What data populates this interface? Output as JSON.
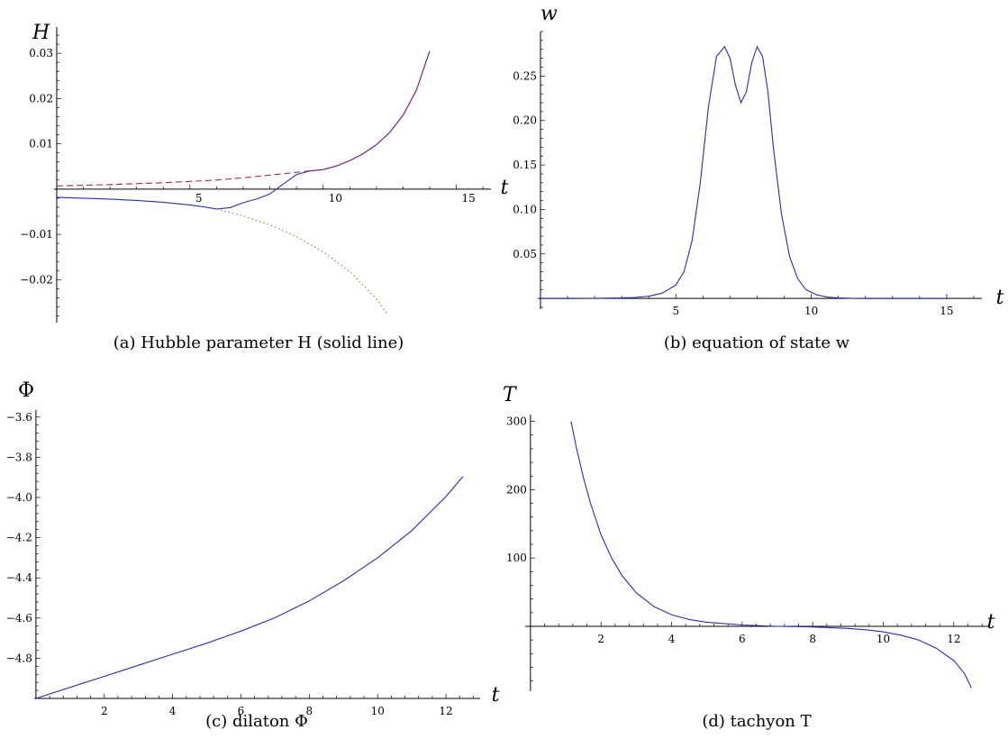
{
  "chart_data": [
    {
      "type": "line",
      "panel": "a",
      "caption": "(a)  Hubble parameter H (solid line)",
      "xlabel": "t",
      "ylabel": "H",
      "xlim": [
        -0.1,
        16.3
      ],
      "ylim": [
        -0.0295,
        0.0358
      ],
      "xticks": [
        5,
        10,
        15
      ],
      "yticks": [
        -0.02,
        -0.01,
        0.01,
        0.02,
        0.03
      ],
      "yticklabels": [
        "−0.02",
        "−0.01",
        "0.01",
        "0.02",
        "0.03"
      ],
      "series": [
        {
          "style": "solid",
          "color": "#2e2ea4",
          "x": [
            0,
            1,
            2,
            3,
            4,
            5,
            5.5,
            6,
            6.5,
            7,
            7.5,
            8,
            8.5,
            9,
            9.5,
            10,
            10.5,
            11,
            11.5,
            12,
            12.5,
            13,
            13.5,
            14
          ],
          "y": [
            -0.0018,
            -0.002,
            -0.0022,
            -0.0025,
            -0.0029,
            -0.0035,
            -0.0039,
            -0.0044,
            -0.0041,
            -0.003,
            -0.0022,
            -0.0011,
            0.0011,
            0.0032,
            0.004,
            0.0043,
            0.0051,
            0.0063,
            0.0078,
            0.0098,
            0.0125,
            0.0163,
            0.0218,
            0.0305
          ]
        },
        {
          "style": "dashed",
          "color": "#9b2a55",
          "x": [
            0,
            2,
            4,
            6,
            7,
            8,
            9,
            9.5,
            10,
            10.5,
            11,
            11.5,
            12,
            12.5,
            13,
            13.5,
            14
          ],
          "y": [
            0.0007,
            0.001,
            0.0014,
            0.002,
            0.0025,
            0.0031,
            0.0037,
            0.004,
            0.0043,
            0.0051,
            0.0063,
            0.0078,
            0.0098,
            0.0125,
            0.0163,
            0.0218,
            0.0305
          ]
        },
        {
          "style": "dotted",
          "color": "#9a7a2a",
          "x": [
            6,
            7,
            8,
            9,
            10,
            11,
            12,
            12.4
          ],
          "y": [
            -0.0044,
            -0.0059,
            -0.0079,
            -0.0105,
            -0.0139,
            -0.0182,
            -0.0242,
            -0.0275
          ]
        }
      ]
    },
    {
      "type": "line",
      "panel": "b",
      "caption": "(b)  equation of state w",
      "xlabel": "t",
      "ylabel": "w",
      "xlim": [
        -0.1,
        16.3
      ],
      "ylim": [
        -0.012,
        0.3
      ],
      "xticks": [
        5,
        10,
        15
      ],
      "yticks": [
        0.05,
        0.1,
        0.15,
        0.2,
        0.25
      ],
      "yticklabels": [
        "0.05",
        "0.10",
        "0.15",
        "0.20",
        "0.25"
      ],
      "series": [
        {
          "style": "solid",
          "color": "#2e2ea4",
          "x": [
            0,
            1,
            2,
            3,
            3.5,
            4,
            4.5,
            5,
            5.3,
            5.6,
            5.9,
            6.2,
            6.5,
            6.8,
            7.0,
            7.2,
            7.4,
            7.6,
            7.8,
            8.0,
            8.2,
            8.4,
            8.6,
            8.9,
            9.2,
            9.5,
            9.8,
            10.2,
            10.6,
            11,
            11.5,
            12,
            13,
            15
          ],
          "y": [
            0,
            0,
            0.0002,
            0.0006,
            0.0012,
            0.0025,
            0.006,
            0.015,
            0.03,
            0.065,
            0.13,
            0.215,
            0.272,
            0.283,
            0.27,
            0.24,
            0.22,
            0.232,
            0.265,
            0.283,
            0.272,
            0.232,
            0.17,
            0.095,
            0.047,
            0.022,
            0.01,
            0.004,
            0.0015,
            0.0006,
            0.0002,
            0,
            0,
            0
          ]
        }
      ]
    },
    {
      "type": "line",
      "panel": "c",
      "caption": "(c)  dilaton Φ",
      "xlabel": "t",
      "ylabel": "Φ",
      "xlim": [
        -0.05,
        13.0
      ],
      "ylim": [
        -5.0,
        -3.565
      ],
      "xticks": [
        2,
        4,
        6,
        8,
        10,
        12
      ],
      "yticks": [
        -4.8,
        -4.6,
        -4.4,
        -4.2,
        -4.0,
        -3.8,
        -3.6
      ],
      "yticklabels": [
        "−4.8",
        "−4.6",
        "−4.4",
        "−4.2",
        "−4.0",
        "−3.8",
        "−3.6"
      ],
      "series": [
        {
          "style": "solid",
          "color": "#2e2ea4",
          "x": [
            0,
            1,
            2,
            3,
            4,
            5,
            6,
            7,
            8,
            9,
            10,
            11,
            12,
            12.5
          ],
          "y": [
            -5.0,
            -4.945,
            -4.89,
            -4.835,
            -4.78,
            -4.725,
            -4.665,
            -4.598,
            -4.515,
            -4.415,
            -4.3,
            -4.165,
            -3.995,
            -3.895
          ]
        }
      ]
    },
    {
      "type": "line",
      "panel": "d",
      "caption": "(d)  tachyon T",
      "xlabel": "t",
      "ylabel": "T",
      "xlim": [
        -0.15,
        13.0
      ],
      "ylim": [
        -95,
        310
      ],
      "xticks": [
        2,
        4,
        6,
        8,
        10,
        12
      ],
      "yticks": [
        100,
        200,
        300
      ],
      "yticklabels": [
        "100",
        "200",
        "300"
      ],
      "series": [
        {
          "style": "solid",
          "color": "#2e2ea4",
          "x": [
            1.15,
            1.3,
            1.5,
            1.7,
            2,
            2.3,
            2.6,
            3,
            3.5,
            4,
            4.5,
            5,
            6,
            7,
            8,
            9,
            9.5,
            10,
            10.5,
            11,
            11.5,
            12,
            12.3,
            12.5
          ],
          "y": [
            300,
            262,
            218,
            180,
            134,
            100,
            74,
            49,
            29,
            17,
            10,
            6,
            2,
            0,
            -1,
            -3,
            -5,
            -8,
            -13,
            -20,
            -32,
            -50,
            -69,
            -90
          ]
        }
      ]
    }
  ]
}
